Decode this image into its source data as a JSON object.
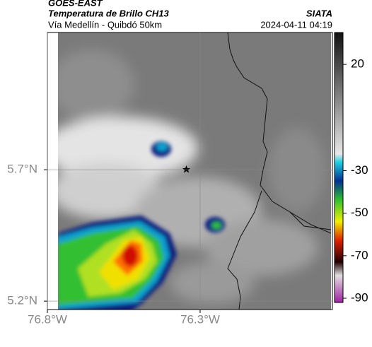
{
  "header": {
    "title": "GOES-EAST",
    "subtitle": "Temperatura de Brillo CH13",
    "location": "Vía Medellín - Quibdó 50km",
    "source": "SIATA",
    "datetime": "2024-04-11 04:19"
  },
  "map": {
    "xlim": [
      -76.8,
      -75.867
    ],
    "ylim": [
      5.168,
      6.222
    ],
    "xticks": [
      {
        "value": -76.8,
        "label": "76.8°W"
      },
      {
        "value": -76.3,
        "label": "76.3°W"
      }
    ],
    "yticks": [
      {
        "value": 5.7,
        "label": "5.7°N"
      },
      {
        "value": 5.2,
        "label": "5.2°N"
      }
    ],
    "grid": true
  },
  "colorbar": {
    "clim": [
      -92,
      35
    ],
    "ticks": [
      20,
      -30,
      -50,
      -70,
      -90
    ]
  }
}
